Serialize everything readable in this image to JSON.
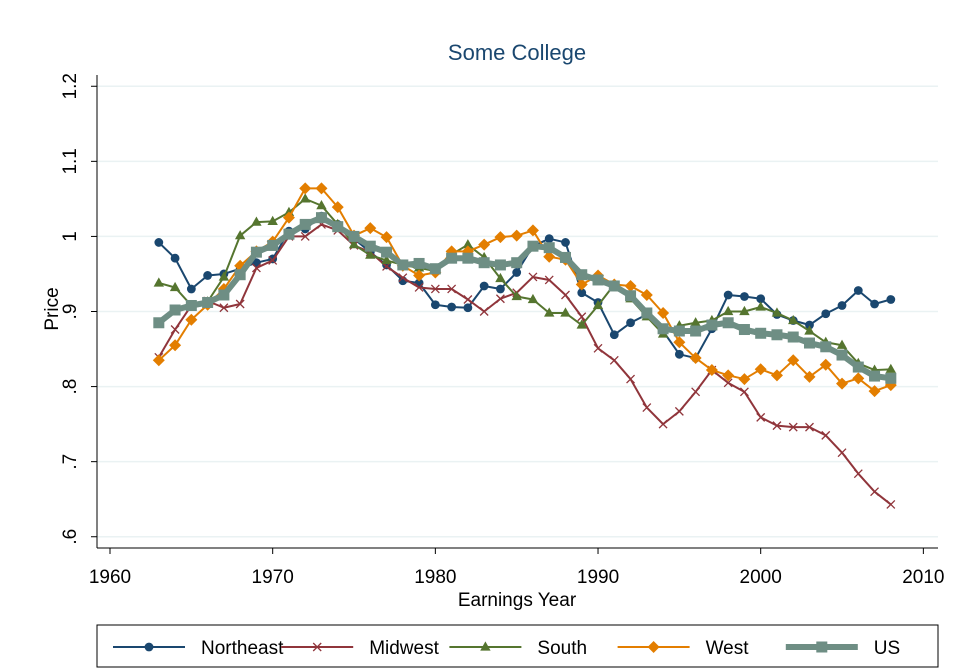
{
  "chart_data": {
    "type": "line",
    "title": "Some College",
    "x_label": "Earnings Year",
    "y_label": "Price",
    "x": [
      1963,
      1964,
      1965,
      1966,
      1967,
      1968,
      1969,
      1970,
      1971,
      1972,
      1973,
      1974,
      1975,
      1976,
      1977,
      1978,
      1979,
      1980,
      1981,
      1982,
      1983,
      1984,
      1985,
      1986,
      1987,
      1988,
      1989,
      1990,
      1991,
      1992,
      1993,
      1994,
      1995,
      1996,
      1997,
      1998,
      1999,
      2000,
      2001,
      2002,
      2003,
      2004,
      2005,
      2006,
      2007,
      2008
    ],
    "series": [
      {
        "name": "Northeast",
        "color": "#1a476f",
        "marker": "circle",
        "values": [
          0.992,
          0.971,
          0.93,
          0.948,
          0.95,
          0.957,
          0.965,
          0.97,
          1.007,
          1.01,
          1.027,
          1.016,
          0.997,
          0.979,
          0.962,
          0.941,
          0.938,
          0.909,
          0.906,
          0.905,
          0.934,
          0.93,
          0.952,
          0.987,
          0.997,
          0.992,
          0.925,
          0.912,
          0.869,
          0.885,
          0.896,
          0.874,
          0.843,
          0.838,
          0.877,
          0.922,
          0.92,
          0.917,
          0.896,
          0.888,
          0.882,
          0.897,
          0.908,
          0.928,
          0.91,
          0.916
        ]
      },
      {
        "name": "Midwest",
        "color": "#90353b",
        "marker": "x",
        "values": [
          0.839,
          0.876,
          0.908,
          0.914,
          0.905,
          0.91,
          0.958,
          0.968,
          1.0,
          1.0,
          1.016,
          1.008,
          0.988,
          0.979,
          0.96,
          0.945,
          0.932,
          0.93,
          0.93,
          0.916,
          0.9,
          0.917,
          0.925,
          0.946,
          0.942,
          0.922,
          0.893,
          0.851,
          0.835,
          0.81,
          0.772,
          0.75,
          0.767,
          0.793,
          0.822,
          0.805,
          0.793,
          0.759,
          0.748,
          0.746,
          0.746,
          0.735,
          0.712,
          0.684,
          0.66,
          0.643
        ]
      },
      {
        "name": "South",
        "color": "#55752f",
        "marker": "triangle",
        "values": [
          0.938,
          0.932,
          0.908,
          0.913,
          0.946,
          1.001,
          1.019,
          1.02,
          1.032,
          1.05,
          1.041,
          1.016,
          0.989,
          0.975,
          0.968,
          0.962,
          0.958,
          0.954,
          0.976,
          0.989,
          0.972,
          0.944,
          0.92,
          0.916,
          0.898,
          0.898,
          0.882,
          0.908,
          0.936,
          0.917,
          0.893,
          0.87,
          0.881,
          0.885,
          0.888,
          0.9,
          0.9,
          0.906,
          0.898,
          0.888,
          0.874,
          0.859,
          0.855,
          0.831,
          0.822,
          0.823
        ]
      },
      {
        "name": "West",
        "color": "#e37e00",
        "marker": "diamond",
        "values": [
          0.835,
          0.855,
          0.889,
          0.909,
          0.93,
          0.961,
          0.98,
          0.993,
          1.025,
          1.064,
          1.064,
          1.039,
          1.001,
          1.011,
          0.999,
          0.961,
          0.948,
          0.952,
          0.98,
          0.98,
          0.989,
          0.999,
          1.001,
          1.008,
          0.973,
          0.969,
          0.936,
          0.948,
          0.936,
          0.934,
          0.922,
          0.898,
          0.859,
          0.838,
          0.822,
          0.815,
          0.81,
          0.823,
          0.815,
          0.835,
          0.813,
          0.829,
          0.804,
          0.811,
          0.794,
          0.802
        ]
      },
      {
        "name": "US",
        "color": "#6e8e84",
        "marker": "square",
        "values": [
          0.885,
          0.902,
          0.908,
          0.912,
          0.922,
          0.949,
          0.979,
          0.988,
          1.003,
          1.016,
          1.025,
          1.013,
          1.0,
          0.987,
          0.979,
          0.962,
          0.964,
          0.957,
          0.971,
          0.971,
          0.965,
          0.962,
          0.965,
          0.987,
          0.985,
          0.972,
          0.949,
          0.942,
          0.934,
          0.921,
          0.898,
          0.877,
          0.874,
          0.874,
          0.882,
          0.885,
          0.876,
          0.871,
          0.869,
          0.866,
          0.858,
          0.853,
          0.842,
          0.826,
          0.814,
          0.811
        ]
      }
    ],
    "xlim": [
      1959.2,
      2010.9
    ],
    "xticks": [
      1960,
      1970,
      1980,
      1990,
      2000,
      2010
    ],
    "ylim": [
      0.585,
      1.215
    ],
    "yticks": [
      {
        "value": 0.6,
        "label": ".6"
      },
      {
        "value": 0.7,
        "label": ".7"
      },
      {
        "value": 0.8,
        "label": ".8"
      },
      {
        "value": 0.9,
        "label": ".9"
      },
      1,
      1.1,
      1.2
    ],
    "grid": true,
    "legend": "bottom"
  }
}
